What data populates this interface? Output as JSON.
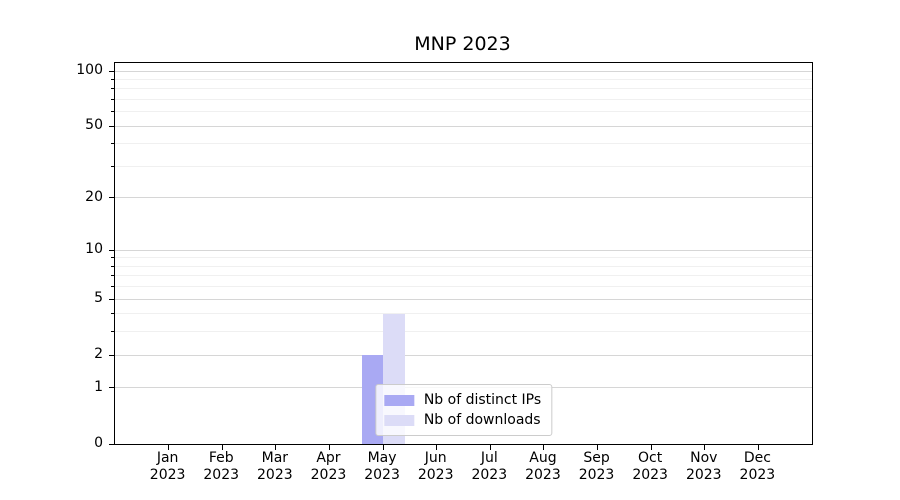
{
  "chart_data": {
    "type": "bar",
    "title": "MNP 2023",
    "categories": [
      "Jan\n2023",
      "Feb\n2023",
      "Mar\n2023",
      "Apr\n2023",
      "May\n2023",
      "Jun\n2023",
      "Jul\n2023",
      "Aug\n2023",
      "Sep\n2023",
      "Oct\n2023",
      "Nov\n2023",
      "Dec\n2023"
    ],
    "series": [
      {
        "name": "Nb of distinct IPs",
        "color": "#a9a9f3",
        "values": [
          0,
          0,
          0,
          0,
          2,
          0,
          0,
          0,
          0,
          0,
          0,
          0
        ]
      },
      {
        "name": "Nb of downloads",
        "color": "#dcdcf7",
        "values": [
          0,
          0,
          0,
          0,
          4,
          0,
          0,
          0,
          0,
          0,
          0,
          0
        ]
      }
    ],
    "y_axis": {
      "scale": "log1p",
      "lim": [
        0,
        100
      ],
      "major_ticks": [
        0,
        1,
        2,
        5,
        10,
        20,
        50,
        100
      ],
      "minor_ticks": [
        3,
        4,
        6,
        7,
        8,
        9,
        30,
        40,
        60,
        70,
        80,
        90
      ]
    },
    "grid": true,
    "legend_position": "lower center"
  },
  "colors": {
    "bar_distinct_ips": "#a9a9f3",
    "bar_downloads": "#dcdcf7",
    "major_grid": "#d6d6d6",
    "minor_grid": "#f0f0f0",
    "axis": "#000000",
    "legend_border": "#cccccc"
  }
}
